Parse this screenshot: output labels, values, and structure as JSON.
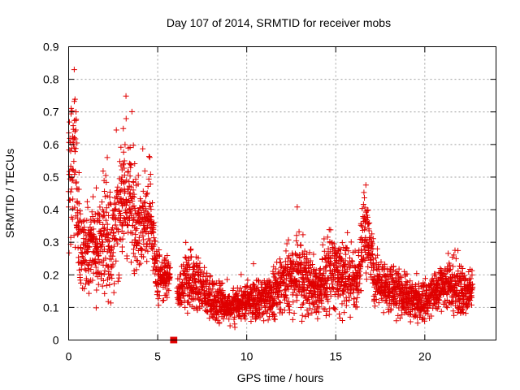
{
  "chart_data": {
    "type": "scatter",
    "title": "Day 107 of 2014, SRMTID for receiver mobs",
    "xlabel": "GPS time / hours",
    "ylabel": "SRMTID / TECUs",
    "xlim": [
      0,
      24
    ],
    "ylim": [
      0,
      0.9
    ],
    "x_ticks": [
      "0",
      "5",
      "10",
      "15",
      "20"
    ],
    "x_tick_values": [
      0,
      5,
      10,
      15,
      20
    ],
    "y_ticks": [
      "0",
      "0.1",
      "0.2",
      "0.3",
      "0.4",
      "0.5",
      "0.6",
      "0.7",
      "0.8",
      "0.9"
    ],
    "y_tick_values": [
      0,
      0.1,
      0.2,
      0.3,
      0.4,
      0.5,
      0.6,
      0.7,
      0.8,
      0.9
    ],
    "grid": true,
    "marker": "+",
    "color": "#e00000",
    "data_gap": {
      "x": [
        5.7,
        6.1
      ],
      "y": 0
    },
    "envelope": [
      {
        "x": 0.0,
        "y": 0.45,
        "spread": 0.22
      },
      {
        "x": 0.3,
        "y": 0.6,
        "spread": 0.22
      },
      {
        "x": 0.6,
        "y": 0.3,
        "spread": 0.12
      },
      {
        "x": 1.0,
        "y": 0.28,
        "spread": 0.1
      },
      {
        "x": 1.5,
        "y": 0.27,
        "spread": 0.12
      },
      {
        "x": 2.0,
        "y": 0.32,
        "spread": 0.17
      },
      {
        "x": 2.5,
        "y": 0.3,
        "spread": 0.12
      },
      {
        "x": 3.0,
        "y": 0.42,
        "spread": 0.17
      },
      {
        "x": 3.4,
        "y": 0.46,
        "spread": 0.17
      },
      {
        "x": 3.8,
        "y": 0.33,
        "spread": 0.12
      },
      {
        "x": 4.2,
        "y": 0.38,
        "spread": 0.12
      },
      {
        "x": 4.6,
        "y": 0.36,
        "spread": 0.1
      },
      {
        "x": 5.0,
        "y": 0.19,
        "spread": 0.06
      },
      {
        "x": 5.5,
        "y": 0.2,
        "spread": 0.05
      },
      {
        "x": 6.2,
        "y": 0.14,
        "spread": 0.04
      },
      {
        "x": 6.6,
        "y": 0.2,
        "spread": 0.08
      },
      {
        "x": 7.0,
        "y": 0.17,
        "spread": 0.07
      },
      {
        "x": 8.0,
        "y": 0.13,
        "spread": 0.06
      },
      {
        "x": 9.0,
        "y": 0.1,
        "spread": 0.04
      },
      {
        "x": 10.0,
        "y": 0.12,
        "spread": 0.05
      },
      {
        "x": 11.0,
        "y": 0.13,
        "spread": 0.05
      },
      {
        "x": 12.0,
        "y": 0.16,
        "spread": 0.08
      },
      {
        "x": 13.0,
        "y": 0.2,
        "spread": 0.1
      },
      {
        "x": 14.0,
        "y": 0.15,
        "spread": 0.07
      },
      {
        "x": 14.8,
        "y": 0.22,
        "spread": 0.1
      },
      {
        "x": 15.2,
        "y": 0.22,
        "spread": 0.1
      },
      {
        "x": 15.7,
        "y": 0.2,
        "spread": 0.09
      },
      {
        "x": 16.2,
        "y": 0.17,
        "spread": 0.08
      },
      {
        "x": 16.6,
        "y": 0.34,
        "spread": 0.12
      },
      {
        "x": 16.9,
        "y": 0.3,
        "spread": 0.08
      },
      {
        "x": 17.2,
        "y": 0.18,
        "spread": 0.07
      },
      {
        "x": 18.0,
        "y": 0.15,
        "spread": 0.06
      },
      {
        "x": 19.0,
        "y": 0.13,
        "spread": 0.05
      },
      {
        "x": 20.0,
        "y": 0.12,
        "spread": 0.05
      },
      {
        "x": 21.0,
        "y": 0.16,
        "spread": 0.06
      },
      {
        "x": 21.7,
        "y": 0.17,
        "spread": 0.08
      },
      {
        "x": 22.2,
        "y": 0.14,
        "spread": 0.06
      },
      {
        "x": 22.7,
        "y": 0.16,
        "spread": 0.05
      }
    ]
  }
}
